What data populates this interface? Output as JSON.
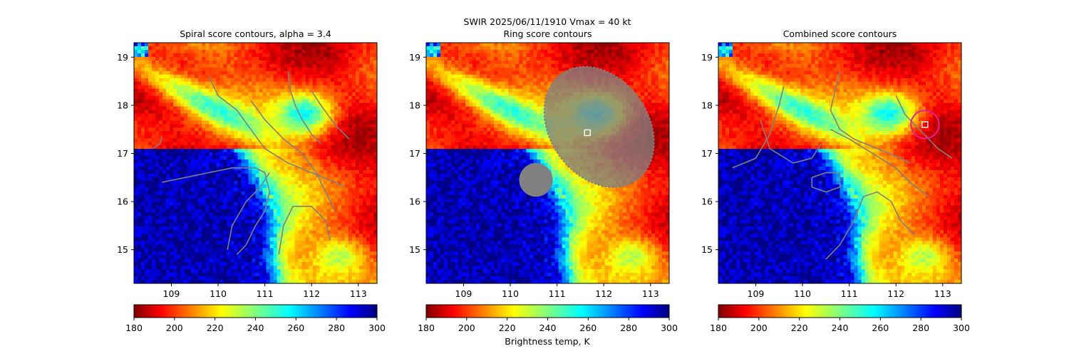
{
  "figure": {
    "suptitle_line1": "SWIR  2025/06/11/1910    Vmax = 40 kt",
    "colorbar_label": "Brightness temp, K"
  },
  "chart_data": [
    {
      "type": "heatmap",
      "title": "Spiral score contours, alpha =  3.4",
      "xlim": [
        108.2,
        113.4
      ],
      "ylim": [
        14.3,
        19.3
      ],
      "x_ticks": [
        "109",
        "110",
        "111",
        "112",
        "113"
      ],
      "y_ticks": [
        "15",
        "16",
        "17",
        "18",
        "19"
      ],
      "colormap": "jet",
      "clim": [
        180,
        300
      ],
      "colorbar_ticks": [
        "180",
        "200",
        "220",
        "240",
        "260",
        "280",
        "300"
      ],
      "contour_color": "#808080",
      "contours": [
        [
          [
            109.8,
            18.6
          ],
          [
            110.0,
            18.2
          ],
          [
            110.4,
            17.9
          ],
          [
            110.7,
            17.5
          ],
          [
            111.0,
            17.1
          ],
          [
            111.5,
            16.8
          ],
          [
            112.0,
            16.6
          ],
          [
            112.5,
            16.4
          ],
          [
            112.7,
            16.3
          ]
        ],
        [
          [
            110.7,
            18.1
          ],
          [
            111.0,
            17.7
          ],
          [
            111.4,
            17.3
          ],
          [
            111.8,
            17.0
          ],
          [
            112.1,
            16.6
          ],
          [
            112.3,
            16.2
          ],
          [
            112.5,
            15.8
          ]
        ],
        [
          [
            111.5,
            18.7
          ],
          [
            111.55,
            18.3
          ],
          [
            111.65,
            18.0
          ],
          [
            111.8,
            17.7
          ],
          [
            112.0,
            17.4
          ],
          [
            112.2,
            17.2
          ]
        ],
        [
          [
            112.0,
            18.3
          ],
          [
            112.2,
            18.0
          ],
          [
            112.5,
            17.6
          ],
          [
            112.8,
            17.3
          ]
        ],
        [
          [
            108.8,
            16.4
          ],
          [
            109.3,
            16.5
          ],
          [
            109.8,
            16.6
          ],
          [
            110.3,
            16.7
          ],
          [
            110.8,
            16.7
          ],
          [
            111.0,
            16.6
          ],
          [
            111.1,
            16.2
          ],
          [
            111.0,
            15.8
          ],
          [
            110.8,
            15.5
          ],
          [
            110.6,
            15.1
          ],
          [
            110.4,
            14.9
          ]
        ],
        [
          [
            110.2,
            15.0
          ],
          [
            110.3,
            15.5
          ],
          [
            110.6,
            16.0
          ],
          [
            110.9,
            16.3
          ],
          [
            111.1,
            16.6
          ]
        ],
        [
          [
            111.3,
            14.9
          ],
          [
            111.4,
            15.5
          ],
          [
            111.6,
            15.9
          ],
          [
            112.0,
            15.9
          ],
          [
            112.3,
            15.6
          ],
          [
            112.4,
            15.2
          ]
        ],
        [
          [
            108.6,
            17.1
          ],
          [
            108.75,
            17.2
          ],
          [
            108.8,
            17.35
          ]
        ]
      ],
      "center_marker": null,
      "circle_marker": null
    },
    {
      "type": "heatmap",
      "title": "Ring score contours",
      "xlim": [
        108.2,
        113.4
      ],
      "ylim": [
        14.3,
        19.3
      ],
      "x_ticks": [
        "109",
        "110",
        "111",
        "112",
        "113"
      ],
      "y_ticks": [
        "15",
        "16",
        "17",
        "18",
        "19"
      ],
      "colormap": "jet",
      "clim": [
        180,
        300
      ],
      "colorbar_ticks": [
        "180",
        "200",
        "220",
        "240",
        "260",
        "280",
        "300"
      ],
      "contour_color": "#808080",
      "filled_regions": [
        {
          "shape": "ellipse",
          "center": [
            111.9,
            17.55
          ],
          "radii": [
            1.05,
            1.35
          ],
          "rotation_deg": -35
        },
        {
          "shape": "circle",
          "center": [
            110.55,
            16.45
          ],
          "radius": 0.36
        }
      ],
      "center_marker": [
        111.65,
        17.43
      ],
      "circle_marker": null
    },
    {
      "type": "heatmap",
      "title": "Combined score contours",
      "xlim": [
        108.2,
        113.4
      ],
      "ylim": [
        14.3,
        19.3
      ],
      "x_ticks": [
        "109",
        "110",
        "111",
        "112",
        "113"
      ],
      "y_ticks": [
        "15",
        "16",
        "17",
        "18",
        "19"
      ],
      "colormap": "jet",
      "clim": [
        180,
        300
      ],
      "colorbar_ticks": [
        "180",
        "200",
        "220",
        "240",
        "260",
        "280",
        "300"
      ],
      "contour_color": "#808080",
      "contours": [
        [
          [
            108.5,
            16.7
          ],
          [
            109.0,
            16.9
          ],
          [
            109.3,
            17.4
          ],
          [
            109.5,
            18.0
          ],
          [
            109.6,
            18.4
          ]
        ],
        [
          [
            109.1,
            17.7
          ],
          [
            109.3,
            17.1
          ],
          [
            109.8,
            16.8
          ],
          [
            110.2,
            16.9
          ],
          [
            110.4,
            17.2
          ]
        ],
        [
          [
            110.6,
            17.5
          ],
          [
            111.0,
            17.3
          ],
          [
            111.5,
            17.0
          ],
          [
            112.0,
            16.7
          ],
          [
            112.3,
            16.4
          ],
          [
            112.7,
            16.1
          ]
        ],
        [
          [
            110.8,
            18.7
          ],
          [
            110.7,
            18.3
          ],
          [
            110.6,
            17.9
          ],
          [
            110.8,
            17.5
          ],
          [
            111.1,
            17.3
          ],
          [
            111.6,
            17.1
          ],
          [
            112.1,
            16.9
          ],
          [
            112.3,
            16.8
          ]
        ],
        [
          [
            112.0,
            18.2
          ],
          [
            112.2,
            17.8
          ],
          [
            112.6,
            17.4
          ],
          [
            112.9,
            17.1
          ],
          [
            113.2,
            16.9
          ]
        ],
        [
          [
            110.2,
            16.5
          ],
          [
            110.5,
            16.6
          ],
          [
            110.8,
            16.6
          ],
          [
            110.8,
            16.3
          ],
          [
            110.5,
            16.2
          ],
          [
            110.2,
            16.3
          ],
          [
            110.2,
            16.5
          ]
        ],
        [
          [
            110.5,
            14.8
          ],
          [
            110.8,
            15.1
          ],
          [
            111.1,
            15.6
          ],
          [
            111.3,
            16.1
          ],
          [
            111.6,
            16.2
          ],
          [
            111.9,
            16.0
          ],
          [
            112.1,
            15.6
          ],
          [
            112.4,
            15.3
          ]
        ]
      ],
      "center_marker": [
        112.62,
        17.6
      ],
      "circle_marker": {
        "center": [
          112.62,
          17.6
        ],
        "radius_data": 0.3,
        "color": "#e0209c"
      }
    }
  ]
}
